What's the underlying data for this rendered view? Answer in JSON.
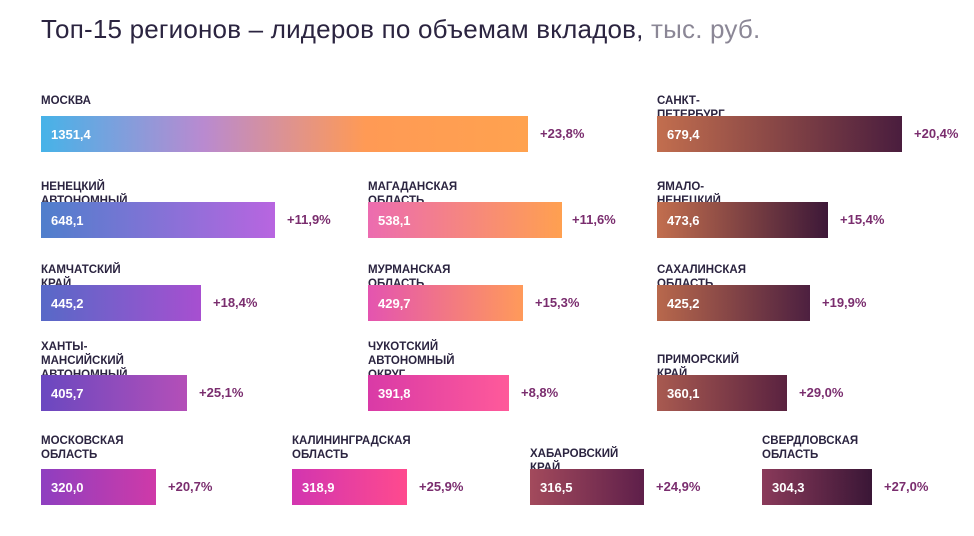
{
  "title": "Топ-15 регионов – лидеров по объемам вкладов,",
  "title_unit": "тыс. руб.",
  "colors": {
    "text": "#2b2440",
    "muted": "#8b8796",
    "pct": "#7a2d6e"
  },
  "chart_data": {
    "type": "bar",
    "title": "Топ-15 регионов – лидеров по объемам вкладов, тыс. руб.",
    "categories": [
      "МОСКВА",
      "САНКТ-ПЕТЕРБУРГ",
      "НЕНЕЦКИЙ АВТОНОМНЫЙ ОКРУГ",
      "МАГАДАНСКАЯ ОБЛАСТЬ",
      "ЯМАЛО-НЕНЕЦКИЙ АВТОНОМНЫЙ ОКРУГ",
      "КАМЧАТСКИЙ КРАЙ",
      "МУРМАНСКАЯ ОБЛАСТЬ",
      "САХАЛИНСКАЯ ОБЛАСТЬ",
      "ХАНТЫ-МАНСИЙСКИЙ АВТОНОМНЫЙ ОКРУГ – ЮГРА",
      "ЧУКОТСКИЙ АВТОНОМНЫЙ ОКРУГ",
      "ПРИМОРСКИЙ КРАЙ",
      "МОСКОВСКАЯ ОБЛАСТЬ",
      "КАЛИНИНГРАДСКАЯ ОБЛАСТЬ",
      "ХАБАРОВСКИЙ КРАЙ",
      "СВЕРДЛОВСКАЯ ОБЛАСТЬ"
    ],
    "values": [
      1351.4,
      679.4,
      648.1,
      538.1,
      473.6,
      445.2,
      429.7,
      425.2,
      405.7,
      391.8,
      360.1,
      320.0,
      318.9,
      316.5,
      304.3
    ],
    "growth_percent": [
      23.8,
      20.4,
      11.9,
      11.6,
      15.4,
      18.4,
      15.3,
      19.9,
      25.1,
      8.8,
      29.0,
      20.7,
      25.9,
      24.9,
      27.0
    ],
    "items": [
      {
        "label": "МОСКВА",
        "value": 1351.4,
        "value_text": "1351,4",
        "change": "+23,8%",
        "gradient": [
          "#46b3e8",
          "#b98ad0",
          "#ff9a55",
          "#ffa24f"
        ]
      },
      {
        "label": "САНКТ-ПЕТЕРБУРГ",
        "value": 679.4,
        "value_text": "679,4",
        "change": "+20,4%",
        "gradient": [
          "#c26e4e",
          "#4a1d3e"
        ]
      },
      {
        "label": "НЕНЕЦКИЙ АВТОНОМНЫЙ ОКРУГ",
        "value": 648.1,
        "value_text": "648,1",
        "change": "+11,9%",
        "gradient": [
          "#4f7fcc",
          "#b865e0"
        ]
      },
      {
        "label": "МАГАДАНСКАЯ ОБЛАСТЬ",
        "value": 538.1,
        "value_text": "538,1",
        "change": "+11,6%",
        "gradient": [
          "#ec6cb0",
          "#ffa050"
        ]
      },
      {
        "label": "ЯМАЛО-НЕНЕЦКИЙ АВТОНОМНЫЙ ОКРУГ",
        "value": 473.6,
        "value_text": "473,6",
        "change": "+15,4%",
        "gradient": [
          "#c26e4e",
          "#3d1838"
        ]
      },
      {
        "label": "КАМЧАТСКИЙ КРАЙ",
        "value": 445.2,
        "value_text": "445,2",
        "change": "+18,4%",
        "gradient": [
          "#5769c7",
          "#a74fd0"
        ]
      },
      {
        "label": "МУРМАНСКАЯ ОБЛАСТЬ",
        "value": 429.7,
        "value_text": "429,7",
        "change": "+15,3%",
        "gradient": [
          "#e454b0",
          "#ff9a5a"
        ]
      },
      {
        "label": "САХАЛИНСКАЯ ОБЛАСТЬ",
        "value": 425.2,
        "value_text": "425,2",
        "change": "+19,9%",
        "gradient": [
          "#b8684c",
          "#4d2040"
        ]
      },
      {
        "label": "ХАНТЫ-МАНСИЙСКИЙ\nАВТОНОМНЫЙ ОКРУГ – ЮГРА",
        "value": 405.7,
        "value_text": "405,7",
        "change": "+25,1%",
        "gradient": [
          "#6a48c0",
          "#b44fb8"
        ]
      },
      {
        "label": "ЧУКОТСКИЙ\nАВТОНОМНЫЙ ОКРУГ",
        "value": 391.8,
        "value_text": "391,8",
        "change": "+8,8%",
        "gradient": [
          "#d93aa7",
          "#ff5a9a"
        ]
      },
      {
        "label": "ПРИМОРСКИЙ КРАЙ",
        "value": 360.1,
        "value_text": "360,1",
        "change": "+29,0%",
        "gradient": [
          "#a85a50",
          "#5a2240"
        ]
      },
      {
        "label": "МОСКОВСКАЯ\nОБЛАСТЬ",
        "value": 320.0,
        "value_text": "320,0",
        "change": "+20,7%",
        "gradient": [
          "#8e3fc0",
          "#cf3aa8"
        ]
      },
      {
        "label": "КАЛИНИНГРАДСКАЯ\nОБЛАСТЬ",
        "value": 318.9,
        "value_text": "318,9",
        "change": "+25,9%",
        "gradient": [
          "#d235b0",
          "#ff4a8e"
        ]
      },
      {
        "label": "ХАБАРОВСКИЙ КРАЙ",
        "value": 316.5,
        "value_text": "316,5",
        "change": "+24,9%",
        "gradient": [
          "#a34a5c",
          "#5e1f4a"
        ]
      },
      {
        "label": "СВЕРДЛОВСКАЯ\nОБЛАСТЬ",
        "value": 304.3,
        "value_text": "304,3",
        "change": "+27,0%",
        "gradient": [
          "#8a3a5a",
          "#3a1636"
        ]
      }
    ]
  }
}
